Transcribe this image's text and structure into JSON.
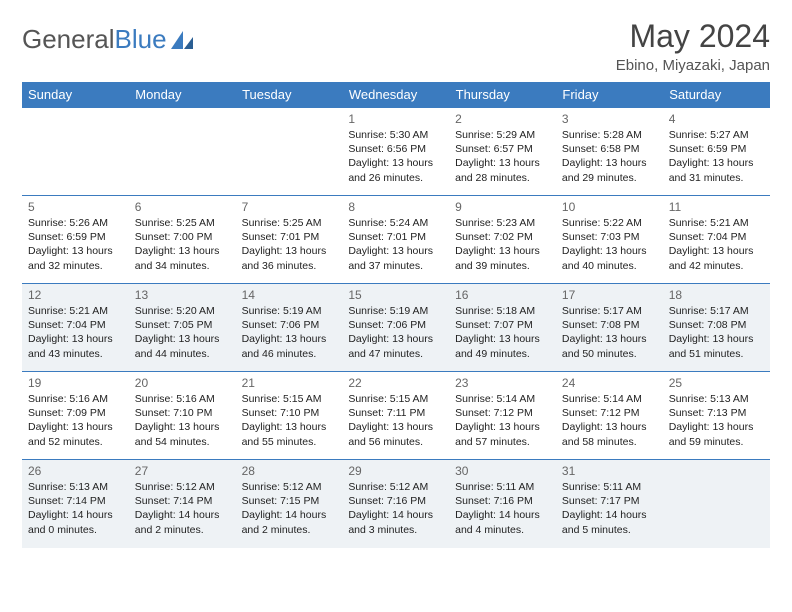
{
  "logo": {
    "text1": "General",
    "text2": "Blue"
  },
  "title": "May 2024",
  "location": "Ebino, Miyazaki, Japan",
  "weekdays": [
    "Sunday",
    "Monday",
    "Tuesday",
    "Wednesday",
    "Thursday",
    "Friday",
    "Saturday"
  ],
  "colors": {
    "accent": "#3b7bbf",
    "altRow": "#eef2f5"
  },
  "weeks": [
    {
      "alt": false,
      "days": [
        null,
        null,
        null,
        {
          "n": "1",
          "sr": "5:30 AM",
          "ss": "6:56 PM",
          "dl": "13 hours and 26 minutes."
        },
        {
          "n": "2",
          "sr": "5:29 AM",
          "ss": "6:57 PM",
          "dl": "13 hours and 28 minutes."
        },
        {
          "n": "3",
          "sr": "5:28 AM",
          "ss": "6:58 PM",
          "dl": "13 hours and 29 minutes."
        },
        {
          "n": "4",
          "sr": "5:27 AM",
          "ss": "6:59 PM",
          "dl": "13 hours and 31 minutes."
        }
      ]
    },
    {
      "alt": false,
      "days": [
        {
          "n": "5",
          "sr": "5:26 AM",
          "ss": "6:59 PM",
          "dl": "13 hours and 32 minutes."
        },
        {
          "n": "6",
          "sr": "5:25 AM",
          "ss": "7:00 PM",
          "dl": "13 hours and 34 minutes."
        },
        {
          "n": "7",
          "sr": "5:25 AM",
          "ss": "7:01 PM",
          "dl": "13 hours and 36 minutes."
        },
        {
          "n": "8",
          "sr": "5:24 AM",
          "ss": "7:01 PM",
          "dl": "13 hours and 37 minutes."
        },
        {
          "n": "9",
          "sr": "5:23 AM",
          "ss": "7:02 PM",
          "dl": "13 hours and 39 minutes."
        },
        {
          "n": "10",
          "sr": "5:22 AM",
          "ss": "7:03 PM",
          "dl": "13 hours and 40 minutes."
        },
        {
          "n": "11",
          "sr": "5:21 AM",
          "ss": "7:04 PM",
          "dl": "13 hours and 42 minutes."
        }
      ]
    },
    {
      "alt": true,
      "days": [
        {
          "n": "12",
          "sr": "5:21 AM",
          "ss": "7:04 PM",
          "dl": "13 hours and 43 minutes."
        },
        {
          "n": "13",
          "sr": "5:20 AM",
          "ss": "7:05 PM",
          "dl": "13 hours and 44 minutes."
        },
        {
          "n": "14",
          "sr": "5:19 AM",
          "ss": "7:06 PM",
          "dl": "13 hours and 46 minutes."
        },
        {
          "n": "15",
          "sr": "5:19 AM",
          "ss": "7:06 PM",
          "dl": "13 hours and 47 minutes."
        },
        {
          "n": "16",
          "sr": "5:18 AM",
          "ss": "7:07 PM",
          "dl": "13 hours and 49 minutes."
        },
        {
          "n": "17",
          "sr": "5:17 AM",
          "ss": "7:08 PM",
          "dl": "13 hours and 50 minutes."
        },
        {
          "n": "18",
          "sr": "5:17 AM",
          "ss": "7:08 PM",
          "dl": "13 hours and 51 minutes."
        }
      ]
    },
    {
      "alt": false,
      "days": [
        {
          "n": "19",
          "sr": "5:16 AM",
          "ss": "7:09 PM",
          "dl": "13 hours and 52 minutes."
        },
        {
          "n": "20",
          "sr": "5:16 AM",
          "ss": "7:10 PM",
          "dl": "13 hours and 54 minutes."
        },
        {
          "n": "21",
          "sr": "5:15 AM",
          "ss": "7:10 PM",
          "dl": "13 hours and 55 minutes."
        },
        {
          "n": "22",
          "sr": "5:15 AM",
          "ss": "7:11 PM",
          "dl": "13 hours and 56 minutes."
        },
        {
          "n": "23",
          "sr": "5:14 AM",
          "ss": "7:12 PM",
          "dl": "13 hours and 57 minutes."
        },
        {
          "n": "24",
          "sr": "5:14 AM",
          "ss": "7:12 PM",
          "dl": "13 hours and 58 minutes."
        },
        {
          "n": "25",
          "sr": "5:13 AM",
          "ss": "7:13 PM",
          "dl": "13 hours and 59 minutes."
        }
      ]
    },
    {
      "alt": true,
      "days": [
        {
          "n": "26",
          "sr": "5:13 AM",
          "ss": "7:14 PM",
          "dl": "14 hours and 0 minutes."
        },
        {
          "n": "27",
          "sr": "5:12 AM",
          "ss": "7:14 PM",
          "dl": "14 hours and 2 minutes."
        },
        {
          "n": "28",
          "sr": "5:12 AM",
          "ss": "7:15 PM",
          "dl": "14 hours and 2 minutes."
        },
        {
          "n": "29",
          "sr": "5:12 AM",
          "ss": "7:16 PM",
          "dl": "14 hours and 3 minutes."
        },
        {
          "n": "30",
          "sr": "5:11 AM",
          "ss": "7:16 PM",
          "dl": "14 hours and 4 minutes."
        },
        {
          "n": "31",
          "sr": "5:11 AM",
          "ss": "7:17 PM",
          "dl": "14 hours and 5 minutes."
        },
        null
      ]
    }
  ]
}
